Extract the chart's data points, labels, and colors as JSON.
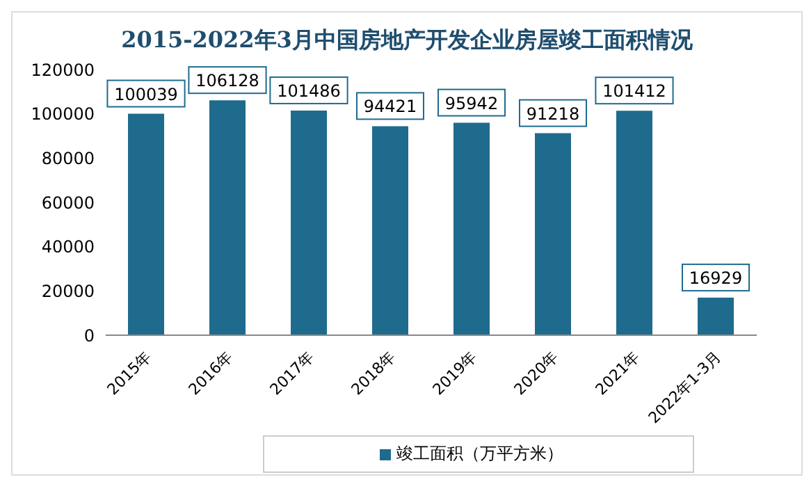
{
  "chart_data": {
    "type": "bar",
    "title": "2015-2022年3月中国房地产开发企业房屋竣工面积情况",
    "categories": [
      "2015年",
      "2016年",
      "2017年",
      "2018年",
      "2019年",
      "2020年",
      "2021年",
      "2022年1-3月"
    ],
    "series": [
      {
        "name": "竣工面积（万平方米）",
        "color": "#1f6b8e",
        "values": [
          100039,
          106128,
          101486,
          94421,
          95942,
          91218,
          101412,
          16929
        ]
      }
    ],
    "ylim": [
      0,
      120000
    ],
    "yticks": [
      0,
      20000,
      40000,
      60000,
      80000,
      100000,
      120000
    ],
    "grid": false,
    "legend": "bottom",
    "data_labels": true
  }
}
